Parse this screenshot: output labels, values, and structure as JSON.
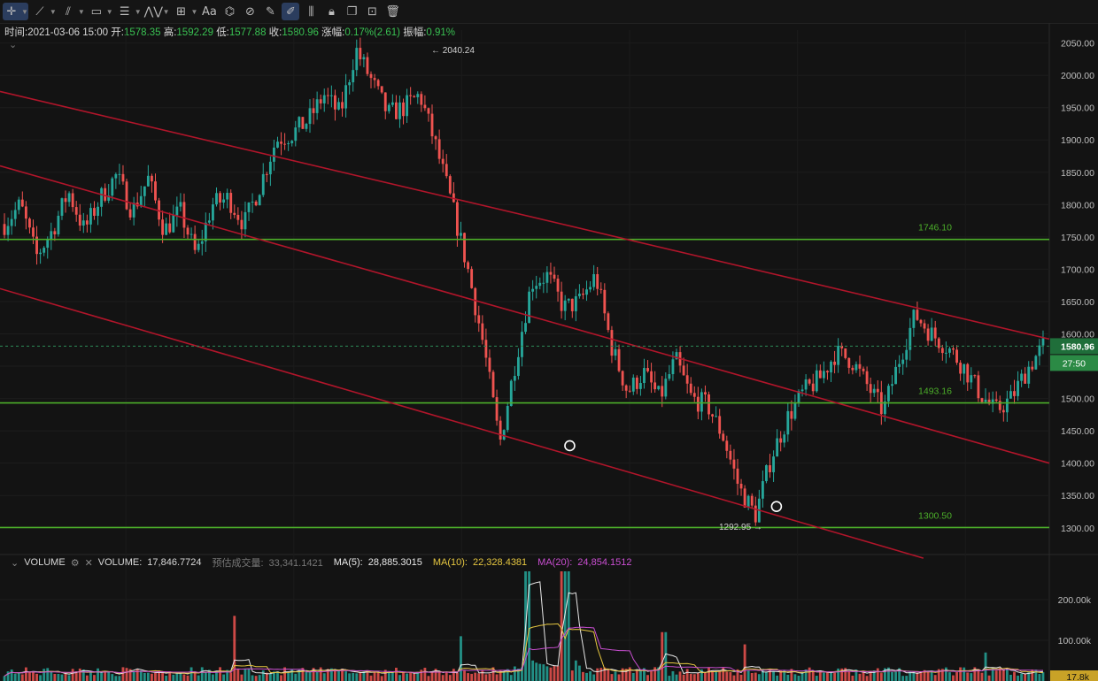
{
  "toolbar": {
    "tools": [
      {
        "name": "crosshair-tool",
        "icon": "crosshair-icon",
        "glyph": "✛",
        "dropdown": true,
        "active": true
      },
      {
        "name": "trend-line-tool",
        "icon": "trend-line-icon",
        "glyph": "⟋",
        "dropdown": true
      },
      {
        "name": "multi-line-tool",
        "icon": "pitchfork-icon",
        "glyph": "⫽",
        "dropdown": true
      },
      {
        "name": "rectangle-tool",
        "icon": "rectangle-icon",
        "glyph": "▭",
        "dropdown": true
      },
      {
        "name": "fibonacci-tool",
        "icon": "fib-lines-icon",
        "glyph": "☰",
        "dropdown": true
      },
      {
        "name": "pattern-tool",
        "icon": "wave-pattern-icon",
        "glyph": "⋀⋁",
        "dropdown": true
      },
      {
        "name": "measure-tool",
        "icon": "measure-icon",
        "glyph": "⊞",
        "dropdown": true
      },
      {
        "name": "text-tool",
        "icon": "text-icon",
        "glyph": "Aa",
        "dropdown": false
      },
      {
        "name": "magnet-tool",
        "icon": "magnet-icon",
        "glyph": "⌬",
        "dropdown": false
      },
      {
        "name": "eraser-tool",
        "icon": "eraser-icon",
        "glyph": "⊘",
        "dropdown": false
      },
      {
        "name": "ruler-tool",
        "icon": "ruler-icon",
        "glyph": "✎",
        "dropdown": false
      },
      {
        "name": "draw-mode-tool",
        "icon": "draw-mode-icon",
        "glyph": "✐",
        "dropdown": false,
        "active": true
      },
      {
        "name": "visibility-tool",
        "icon": "eye-lines-icon",
        "glyph": "⫼",
        "dropdown": false
      },
      {
        "name": "lock-tool",
        "icon": "lock-icon",
        "glyph": "🔒︎",
        "dropdown": false
      },
      {
        "name": "copy-tool",
        "icon": "copy-icon",
        "glyph": "❐",
        "dropdown": false
      },
      {
        "name": "screenshot-tool",
        "icon": "image-icon",
        "glyph": "⊡",
        "dropdown": false
      },
      {
        "name": "delete-tool",
        "icon": "trash-icon",
        "glyph": "🗑︎",
        "dropdown": false
      }
    ]
  },
  "info": {
    "time_label": "时间:",
    "time": "2021-03-06 15:00",
    "open_label": "开:",
    "open": "1578.35",
    "high_label": "高:",
    "high": "1592.29",
    "low_label": "低:",
    "low": "1577.88",
    "close_label": "收:",
    "close": "1580.96",
    "change_label": "涨幅:",
    "change": "0.17%(2.61)",
    "amplitude_label": "振幅:",
    "amplitude": "0.91%"
  },
  "volume_info": {
    "title": "VOLUME",
    "volume_label": "VOLUME:",
    "volume": "17,846.7724",
    "estimate_label": "预估成交量:",
    "estimate": "33,341.1421",
    "ma5_label": "MA(5):",
    "ma5": "28,885.3015",
    "ma10_label": "MA(10):",
    "ma10": "22,328.4381",
    "ma20_label": "MA(20):",
    "ma20": "24,854.1512"
  },
  "colors": {
    "up": "#26a69a",
    "down": "#ef5350",
    "hline": "#4caf2a",
    "channel": "#b0152a",
    "ma5": "#e8e8e8",
    "ma10": "#e5c640",
    "ma20": "#c94ed1",
    "label_green": "#3e8a3a"
  },
  "chart_data": [
    {
      "type": "candlestick",
      "title": "",
      "yaxis": {
        "ticks": [
          "2050.00",
          "2000.00",
          "1950.00",
          "1900.00",
          "1850.00",
          "1800.00",
          "1750.00",
          "1700.00",
          "1650.00",
          "1600.00",
          "1550.00",
          "1500.00",
          "1450.00",
          "1400.00",
          "1350.00",
          "1300.00"
        ],
        "range": [
          1260,
          2070
        ]
      },
      "last_price": "1580.96",
      "countdown": "27:50",
      "price_path": [
        1770,
        1800,
        1720,
        1760,
        1820,
        1760,
        1810,
        1845,
        1790,
        1840,
        1760,
        1790,
        1720,
        1800,
        1810,
        1770,
        1830,
        1900,
        1910,
        1930,
        1970,
        1940,
        2040,
        1990,
        1940,
        1950,
        1970,
        1890,
        1800,
        1700,
        1580,
        1430,
        1560,
        1680,
        1690,
        1640,
        1650,
        1690,
        1580,
        1510,
        1540,
        1500,
        1560,
        1500,
        1490,
        1440,
        1360,
        1320,
        1410,
        1470,
        1510,
        1530,
        1570,
        1560,
        1520,
        1480,
        1560,
        1630,
        1600,
        1580,
        1550,
        1510,
        1480,
        1500,
        1545,
        1581
      ],
      "high": {
        "label": "← 2040.24",
        "value": 2040.24
      },
      "low": {
        "label": "1292.95 →",
        "value": 1292.95
      },
      "horizontal_lines": [
        {
          "value": 1746.1,
          "label": "1746.10"
        },
        {
          "value": 1493.16,
          "label": "1493.16"
        },
        {
          "value": 1300.5,
          "label": "1300.50"
        }
      ],
      "channel_lines": [
        {
          "from": [
            0,
            1975
          ],
          "to": [
            1,
            1592
          ]
        },
        {
          "from": [
            0,
            1860
          ],
          "to": [
            1,
            1400
          ]
        },
        {
          "from": [
            0,
            1670
          ],
          "to": [
            0.88,
            1253
          ]
        }
      ],
      "markers": [
        {
          "x": 0.543,
          "value": 1427
        },
        {
          "x": 0.74,
          "value": 1333
        }
      ]
    },
    {
      "type": "bar",
      "title": "VOLUME",
      "yaxis": {
        "ticks": [
          "200.00k",
          "100.00k"
        ],
        "range": [
          0,
          265000
        ]
      },
      "last_value_label": "17.8k",
      "spikes": [
        {
          "x": 0.503,
          "value": 300000
        },
        {
          "x": 0.538,
          "value": 240000
        },
        {
          "x": 0.542,
          "value": 160000
        },
        {
          "x": 0.222,
          "value": 160000
        },
        {
          "x": 0.44,
          "value": 110000
        },
        {
          "x": 0.635,
          "value": 120000
        },
        {
          "x": 0.712,
          "value": 90000
        },
        {
          "x": 0.945,
          "value": 70000
        }
      ]
    }
  ]
}
